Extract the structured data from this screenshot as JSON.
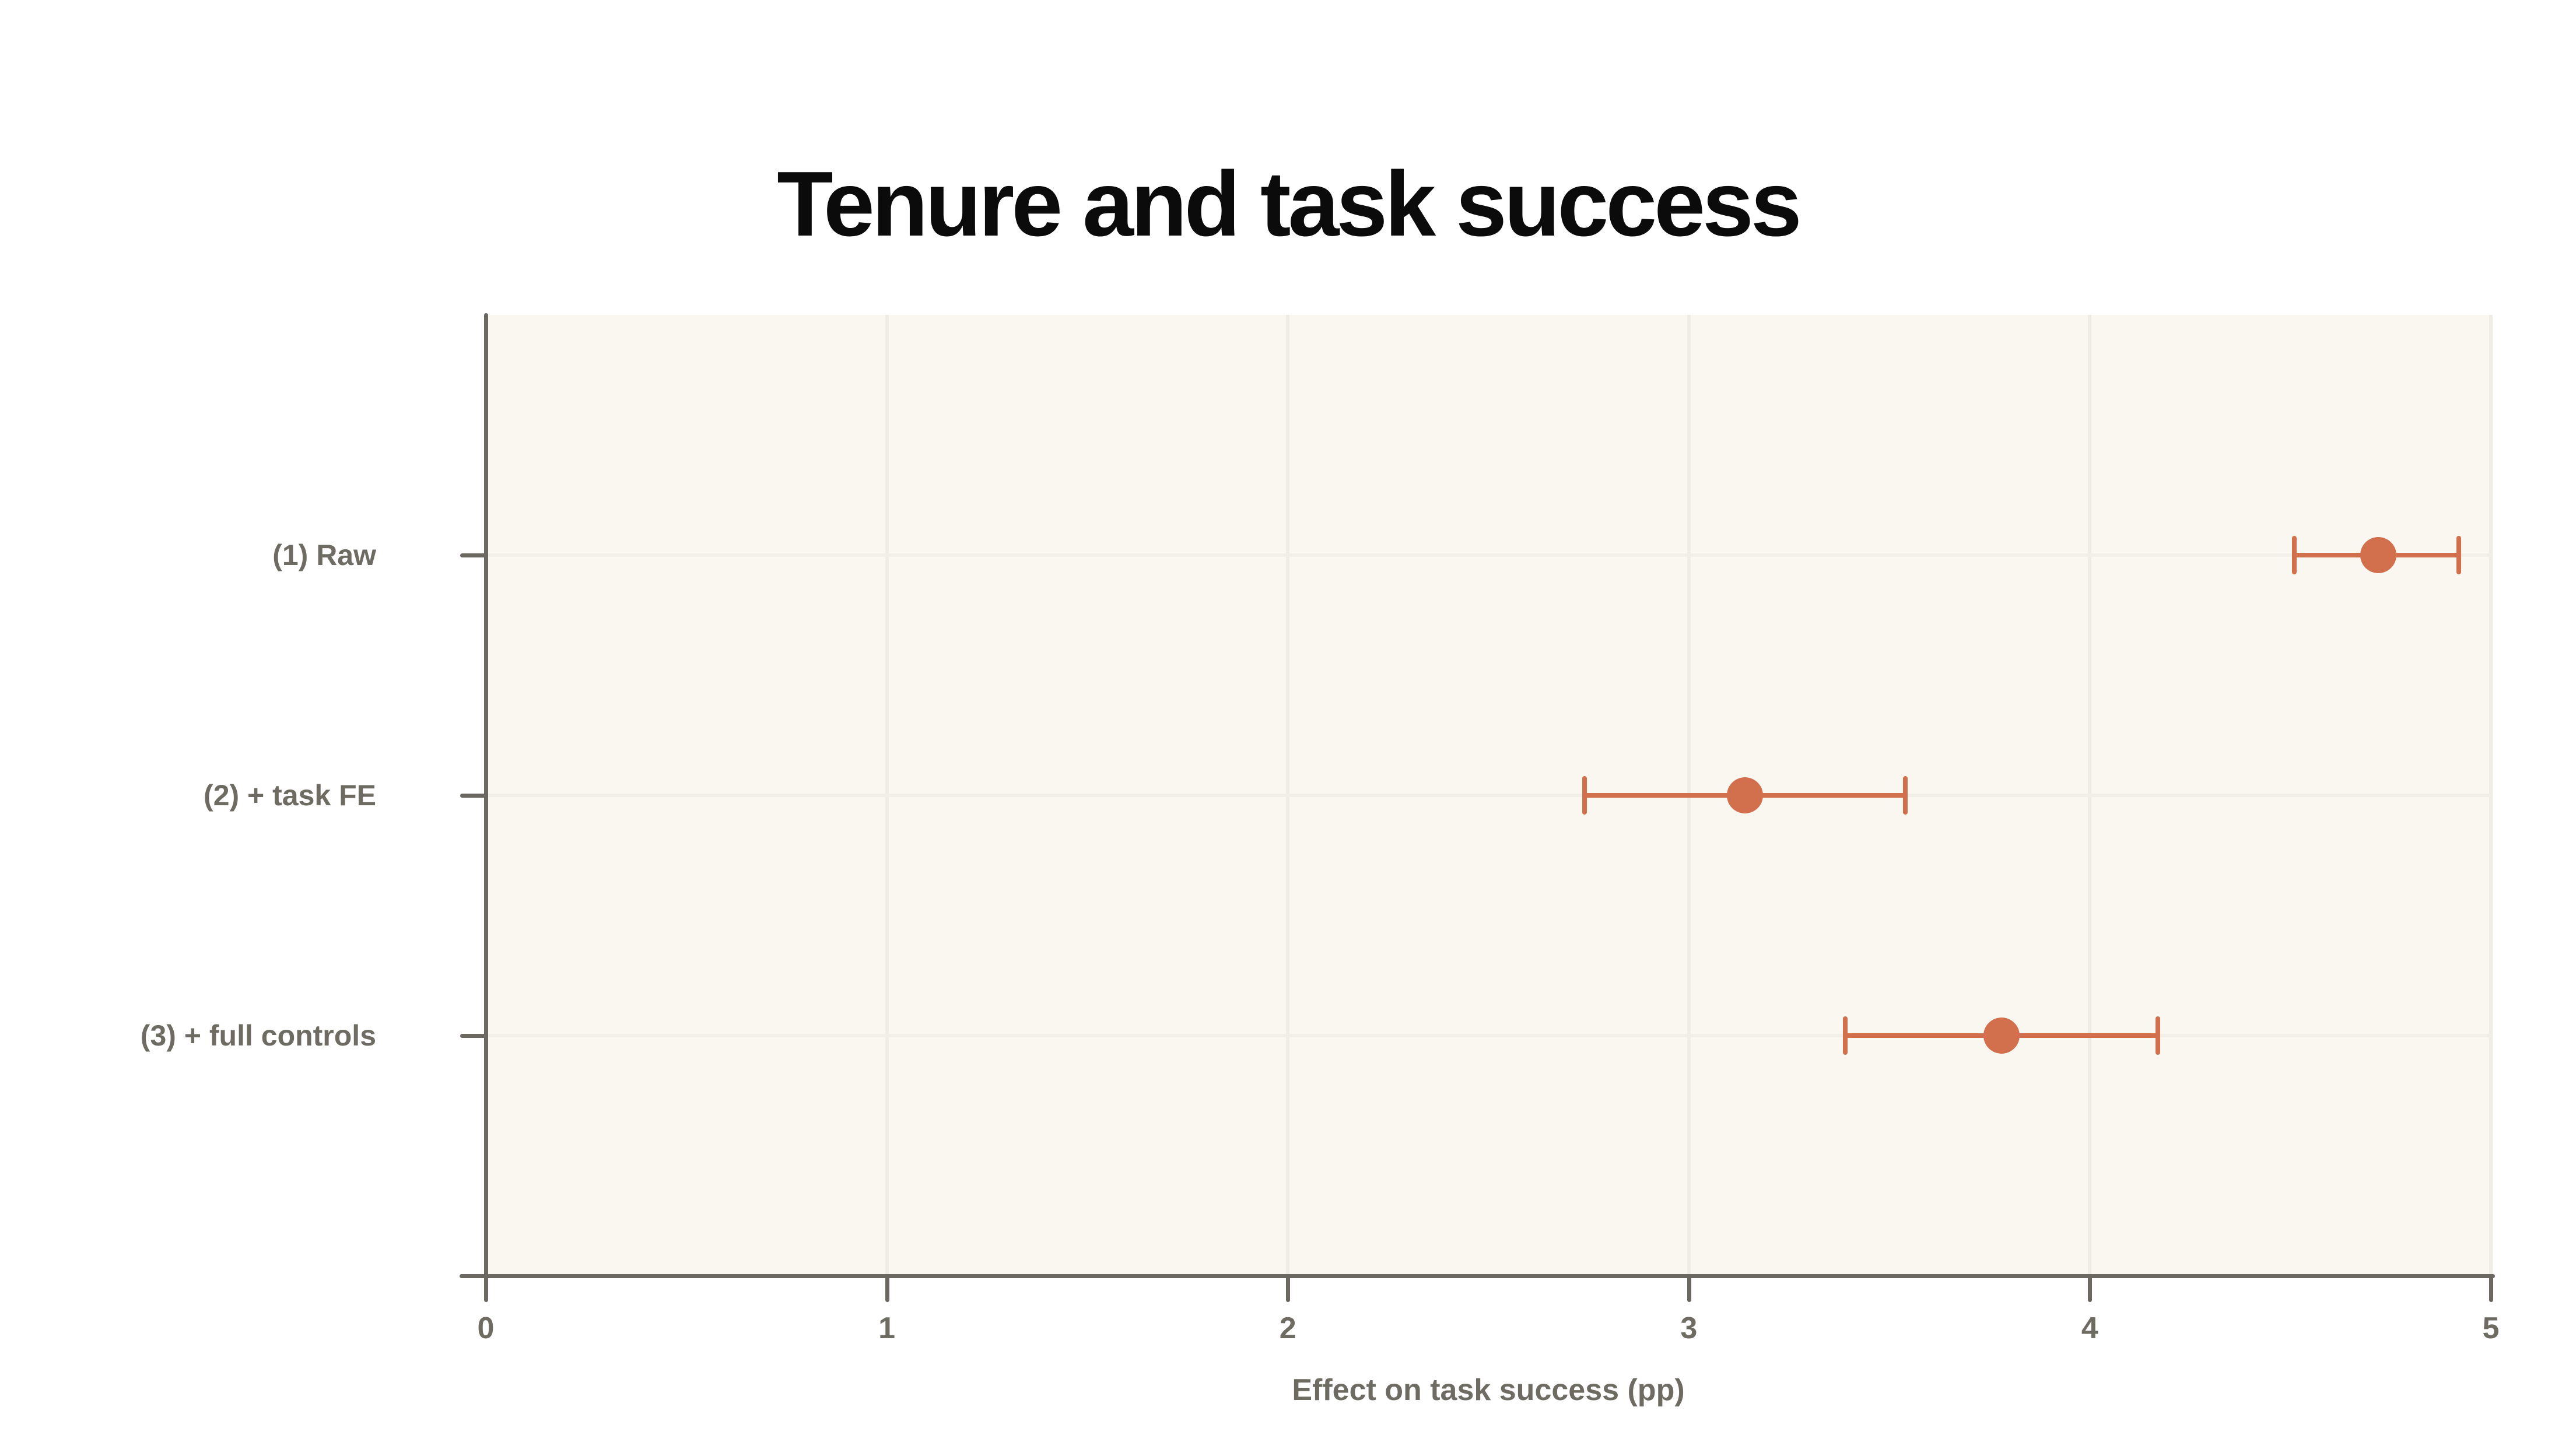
{
  "page": {
    "background": "#ffffff"
  },
  "chart_data": {
    "type": "scatter",
    "subtype": "dot-with-error-bars (coefficient / forest plot)",
    "orientation": "horizontal",
    "title": "Tenure and task success",
    "xlabel": "Effect on task success (pp)",
    "xlim": [
      0,
      5
    ],
    "xticks": [
      0,
      1,
      2,
      3,
      4,
      5
    ],
    "grid": true,
    "legend": "none",
    "categories": [
      "(1) Raw",
      "(2) + task FE",
      "(3) + full controls"
    ],
    "series": [
      {
        "name": "Effect on task success (pp)",
        "points": [
          {
            "category": "(1) Raw",
            "estimate": 4.72,
            "ci_low": 4.51,
            "ci_high": 4.92
          },
          {
            "category": "(2) + task FE",
            "estimate": 3.14,
            "ci_low": 2.74,
            "ci_high": 3.54
          },
          {
            "category": "(3) + full controls",
            "estimate": 3.78,
            "ci_low": 3.39,
            "ci_high": 4.17
          }
        ]
      }
    ],
    "colors": {
      "marker": "#d2704e",
      "axis": "#6b6862",
      "label_text": "#6e6b63",
      "title_text": "#0b0b0b",
      "plot_background": "#f9f7f0",
      "gridline": "#eeece4",
      "page_background": "#ffffff"
    }
  }
}
